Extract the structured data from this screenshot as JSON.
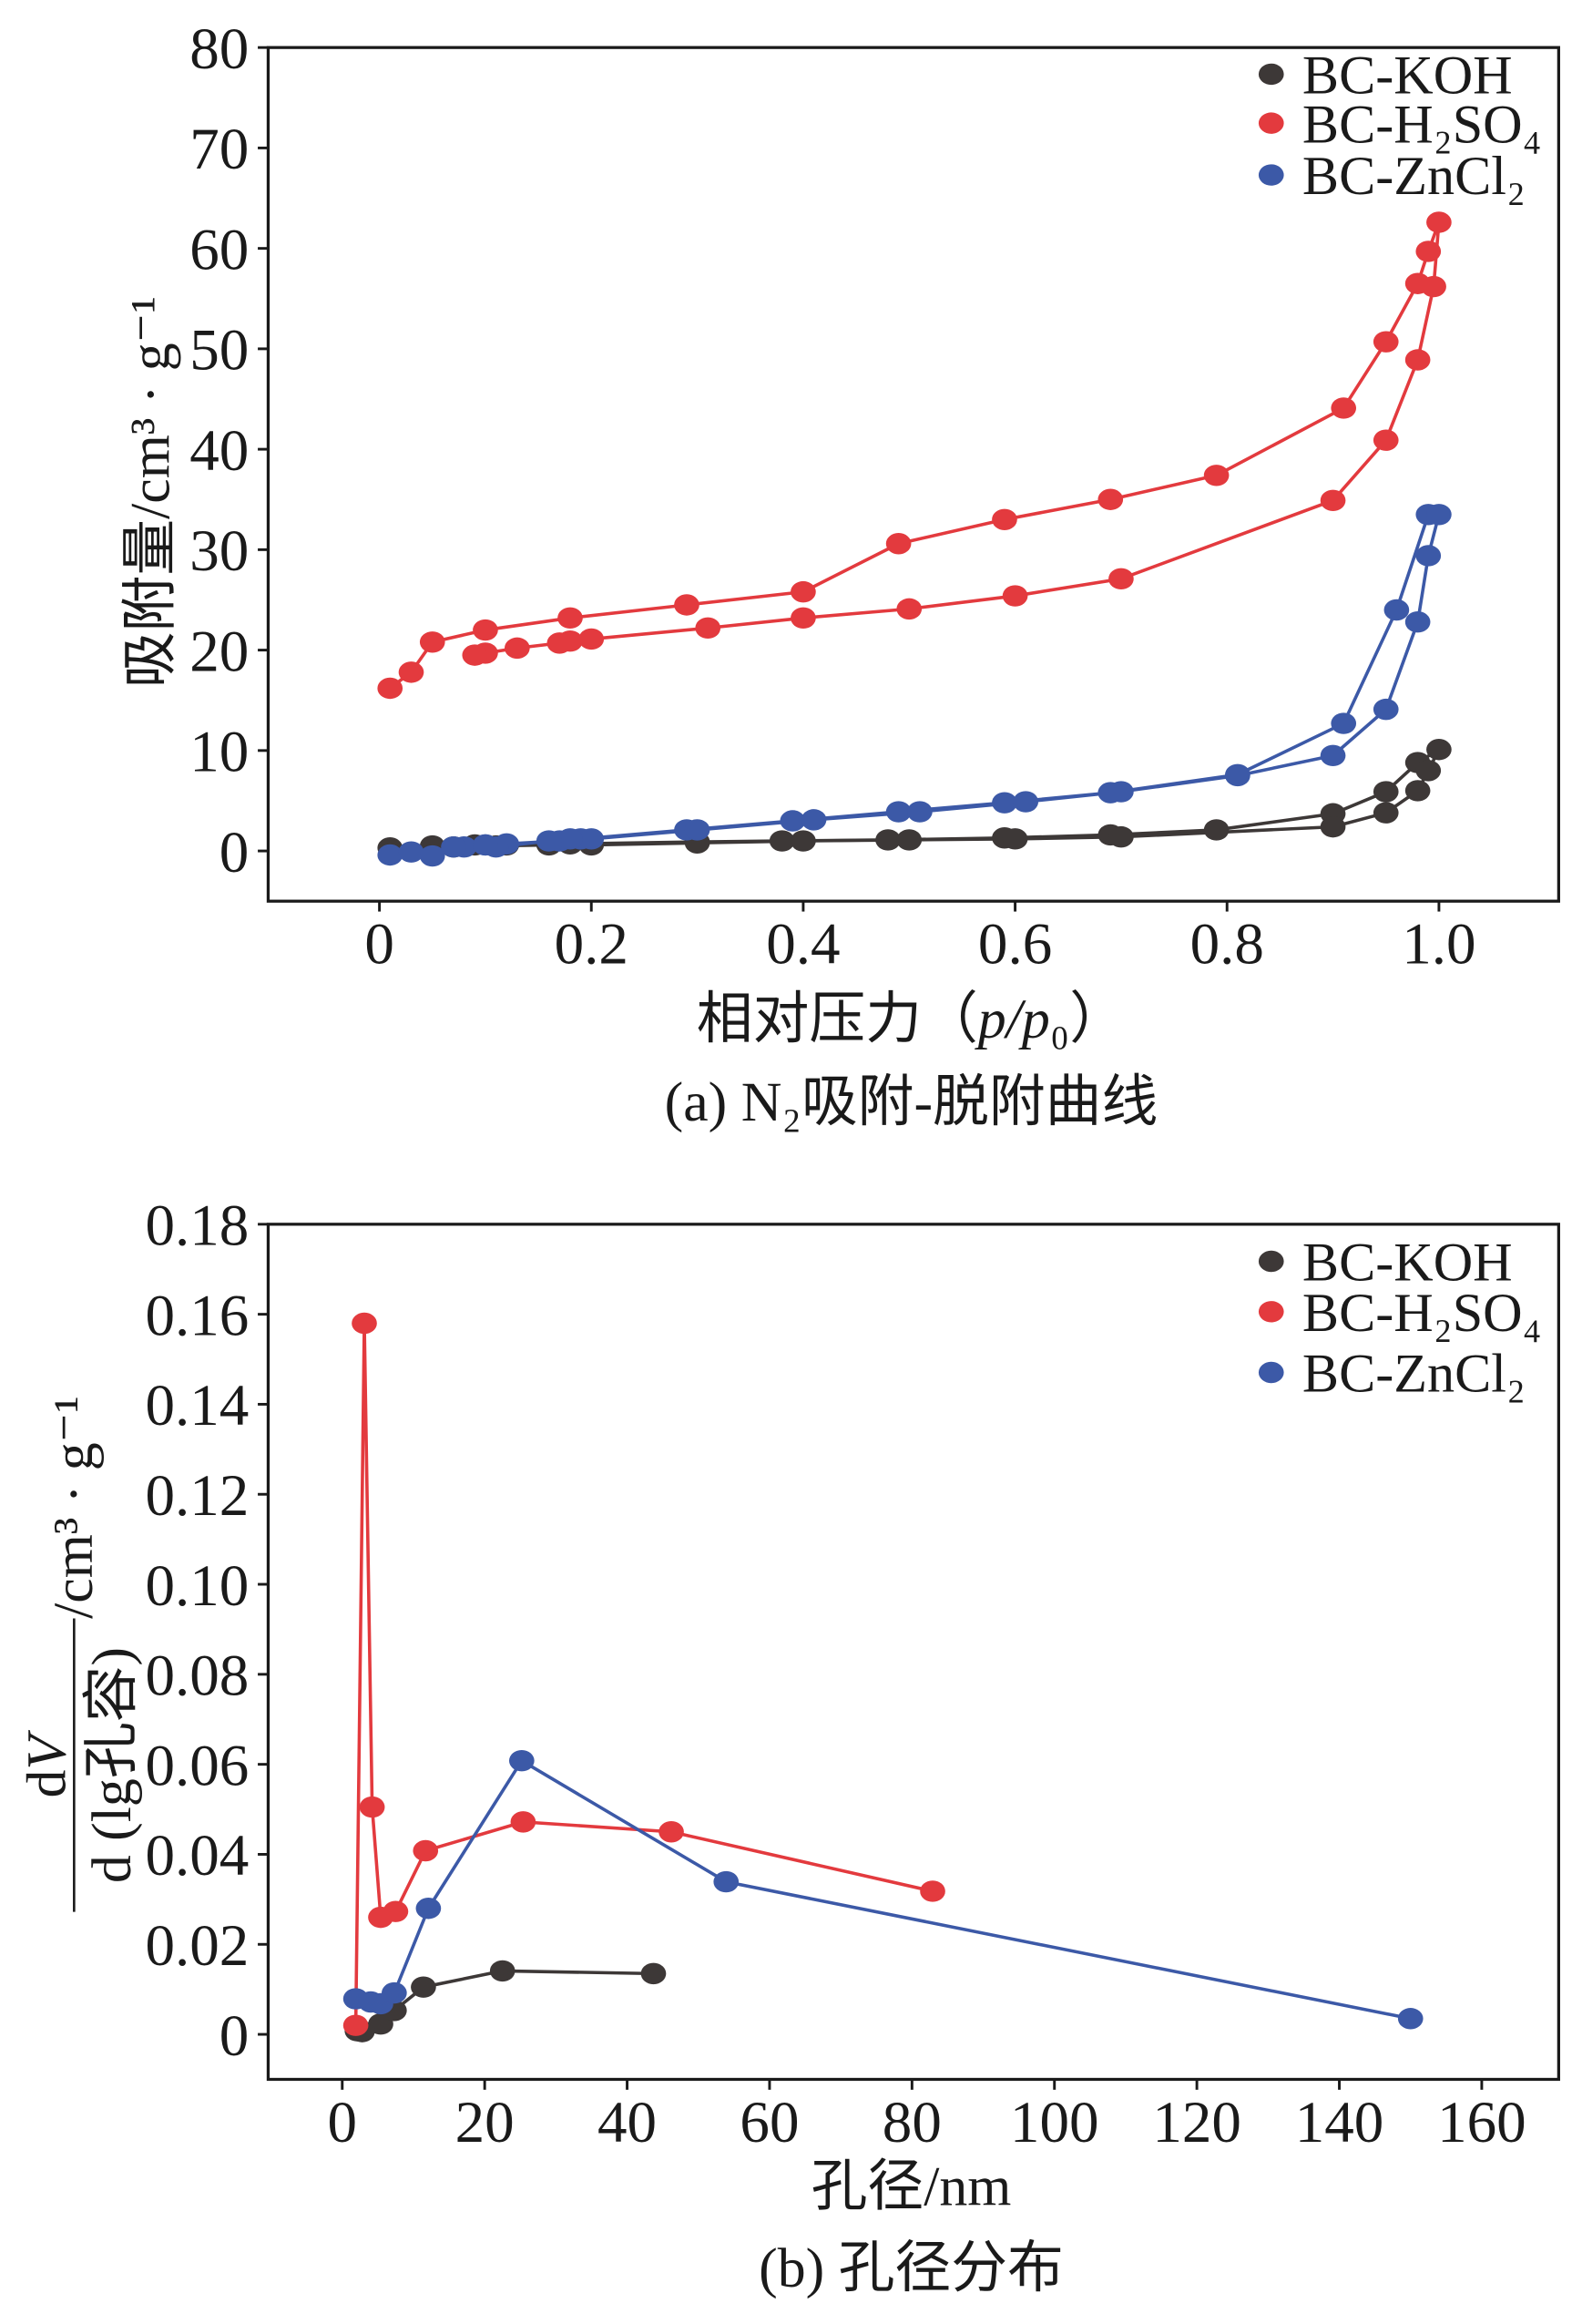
{
  "chart_data": [
    {
      "type": "line",
      "title": "(a) N₂吸附-脱附曲线",
      "xlabel": "相对压力（p/p₀）",
      "ylabel": "吸附量/cm³ · g⁻¹",
      "xlim": [
        -0.105,
        1.113
      ],
      "ylim": [
        -5,
        80
      ],
      "xticks": [
        0,
        0.2,
        0.4,
        0.6,
        0.8,
        1.0
      ],
      "xtick_labels": [
        "0",
        "0.2",
        "0.4",
        "0.6",
        "0.8",
        "1.0"
      ],
      "yticks": [
        0,
        10,
        20,
        30,
        40,
        50,
        60,
        70,
        80
      ],
      "ytick_labels": [
        "0",
        "10",
        "20",
        "30",
        "40",
        "50",
        "60",
        "70",
        "80"
      ],
      "grid": false,
      "legend_position": "top-right",
      "series": [
        {
          "name": "BC-KOH",
          "color": "#3d3837",
          "adsorption": {
            "x": [
              0.01,
              0.05,
              0.09,
              0.12,
              0.18,
              0.3,
              0.38,
              0.48,
              0.59,
              0.69,
              0.79,
              0.9,
              0.95,
              0.98,
              1.0
            ],
            "y": [
              0.3,
              0.5,
              0.6,
              0.6,
              0.7,
              0.9,
              1.0,
              1.1,
              1.3,
              1.6,
              2.1,
              3.7,
              5.9,
              8.8,
              10.1
            ]
          },
          "desorption": {
            "x": [
              0.99,
              0.98,
              0.95,
              0.9,
              0.7,
              0.6,
              0.5,
              0.4,
              0.3,
              0.2,
              0.16,
              0.11,
              0.07
            ],
            "y": [
              8.0,
              6.0,
              3.8,
              2.4,
              1.4,
              1.2,
              1.1,
              1.0,
              0.8,
              0.6,
              0.6,
              0.5,
              0.4
            ]
          }
        },
        {
          "name": "BC-H₂SO₄",
          "color": "#e33a3e",
          "adsorption": {
            "x": [
              0.01,
              0.03,
              0.05,
              0.1,
              0.18,
              0.29,
              0.4,
              0.49,
              0.59,
              0.69,
              0.79,
              0.91,
              0.95,
              0.98,
              0.99,
              1.0
            ],
            "y": [
              16.2,
              17.8,
              20.8,
              22.0,
              23.2,
              24.5,
              25.8,
              30.6,
              33.0,
              35.0,
              37.4,
              44.1,
              50.7,
              56.5,
              59.7,
              62.6
            ]
          },
          "desorption": {
            "x": [
              0.995,
              0.98,
              0.95,
              0.9,
              0.7,
              0.6,
              0.5,
              0.4,
              0.31,
              0.2,
              0.18,
              0.17,
              0.13,
              0.1,
              0.09
            ],
            "y": [
              56.2,
              48.9,
              40.9,
              34.9,
              27.1,
              25.4,
              24.1,
              23.2,
              22.2,
              21.1,
              20.9,
              20.7,
              20.2,
              19.7,
              19.5
            ]
          }
        },
        {
          "name": "BC-ZnCl₂",
          "color": "#3c59a7",
          "adsorption": {
            "x": [
              0.01,
              0.03,
              0.05,
              0.08,
              0.1,
              0.12,
              0.17,
              0.19,
              0.29,
              0.39,
              0.49,
              0.59,
              0.69,
              0.81,
              0.91,
              0.96,
              0.99
            ],
            "y": [
              -0.4,
              -0.1,
              -0.5,
              0.4,
              0.6,
              0.7,
              1.0,
              1.2,
              2.1,
              3.0,
              3.9,
              4.8,
              5.8,
              7.6,
              12.7,
              24.0,
              33.5
            ]
          },
          "desorption": {
            "x": [
              1.0,
              0.99,
              0.98,
              0.95,
              0.9,
              0.81,
              0.7,
              0.61,
              0.51,
              0.41,
              0.3,
              0.2,
              0.18,
              0.16,
              0.11,
              0.1,
              0.07
            ],
            "y": [
              33.5,
              29.4,
              22.8,
              14.1,
              9.5,
              7.5,
              5.9,
              4.9,
              3.9,
              3.1,
              2.1,
              1.2,
              1.2,
              1.0,
              0.4,
              0.6,
              0.4
            ]
          }
        }
      ]
    },
    {
      "type": "line",
      "title": "(b) 孔径分布",
      "xlabel": "孔径/nm",
      "ylabel": {
        "numerator": "dV",
        "denominator": "d (lg孔容)",
        "unit": "/cm³ · g⁻¹"
      },
      "xlim": [
        -10.4,
        170.8
      ],
      "ylim": [
        -0.01,
        0.18
      ],
      "xticks": [
        0,
        20,
        40,
        60,
        80,
        100,
        120,
        140,
        160
      ],
      "xtick_labels": [
        "0",
        "20",
        "40",
        "60",
        "80",
        "100",
        "120",
        "140",
        "160"
      ],
      "yticks": [
        0,
        0.02,
        0.04,
        0.06,
        0.08,
        0.1,
        0.12,
        0.14,
        0.16,
        0.18
      ],
      "ytick_labels": [
        "0",
        "0.02",
        "0.04",
        "0.06",
        "0.08",
        "0.10",
        "0.12",
        "0.14",
        "0.16",
        "0.18"
      ],
      "grid": false,
      "legend_position": "top-right",
      "series": [
        {
          "name": "BC-KOH",
          "color": "#3d3837",
          "x": [
            2.1,
            2.8,
            5.4,
            7.3,
            11.4,
            22.5,
            43.7
          ],
          "y": [
            0.0008,
            0.0006,
            0.0023,
            0.0053,
            0.0105,
            0.0141,
            0.0135
          ]
        },
        {
          "name": "BC-H₂SO₄",
          "color": "#e33a3e",
          "x": [
            1.9,
            3.1,
            4.2,
            5.4,
            7.5,
            11.7,
            25.4,
            46.2,
            82.9
          ],
          "y": [
            0.002,
            0.158,
            0.0505,
            0.026,
            0.0273,
            0.0408,
            0.0472,
            0.045,
            0.0318
          ]
        },
        {
          "name": "BC-ZnCl₂",
          "color": "#3c59a7",
          "x": [
            1.9,
            4.0,
            5.4,
            7.3,
            12.1,
            25.2,
            53.9,
            150.0
          ],
          "y": [
            0.0079,
            0.0072,
            0.0068,
            0.0092,
            0.028,
            0.0608,
            0.0339,
            0.0035
          ]
        }
      ]
    }
  ]
}
